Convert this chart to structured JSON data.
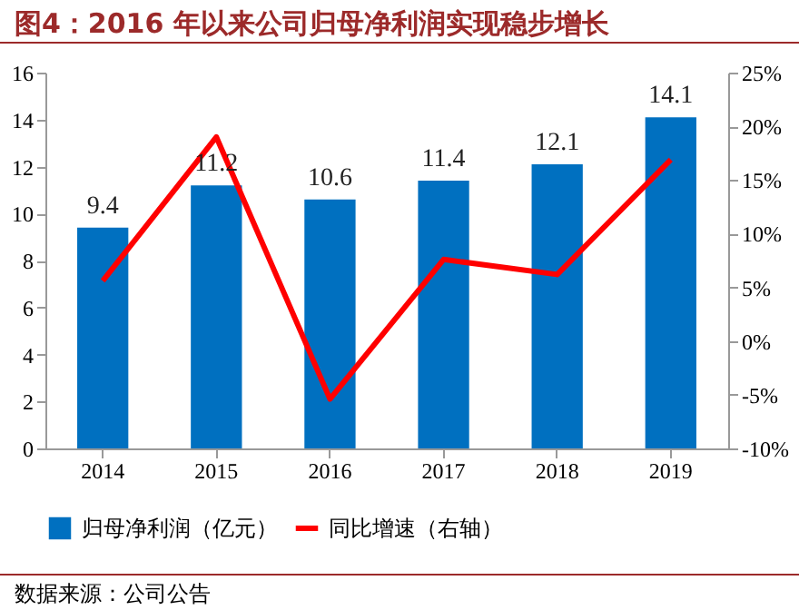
{
  "chart_data": {
    "type": "bar",
    "title": "图4：2016 年以来公司归母净利润实现稳步增长",
    "categories": [
      "2014",
      "2015",
      "2016",
      "2017",
      "2018",
      "2019"
    ],
    "series": [
      {
        "name": "归母净利润（亿元）",
        "color": "#0070c0",
        "values": [
          9.4,
          11.2,
          10.6,
          11.4,
          12.1,
          14.1
        ],
        "value_labels": [
          "9.4",
          "11.2",
          "10.6",
          "11.4",
          "12.1",
          "14.1"
        ]
      },
      {
        "name": "同比增速（右轴）",
        "type": "line",
        "axis": "y2",
        "color": "#ff0000",
        "values": [
          5.6,
          19.0,
          -5.4,
          7.6,
          6.2,
          16.9
        ]
      }
    ],
    "ylim": [
      0,
      16
    ],
    "yticks": [
      0,
      2,
      4,
      6,
      8,
      10,
      12,
      14,
      16
    ],
    "y2lim": [
      -10,
      25
    ],
    "y2ticks": [
      {
        "value": -10,
        "label": "-10%"
      },
      {
        "value": -5,
        "label": "-5%"
      },
      {
        "value": 0,
        "label": "0%"
      },
      {
        "value": 5,
        "label": "5%"
      },
      {
        "value": 10,
        "label": "10%"
      },
      {
        "value": 15,
        "label": "15%"
      },
      {
        "value": 20,
        "label": "20%"
      },
      {
        "value": 25,
        "label": "25%"
      }
    ],
    "grid": false,
    "legend": "bottom",
    "marker": "none",
    "line_style": "solid",
    "annotations": [
      "数据来源：公司公告"
    ]
  }
}
